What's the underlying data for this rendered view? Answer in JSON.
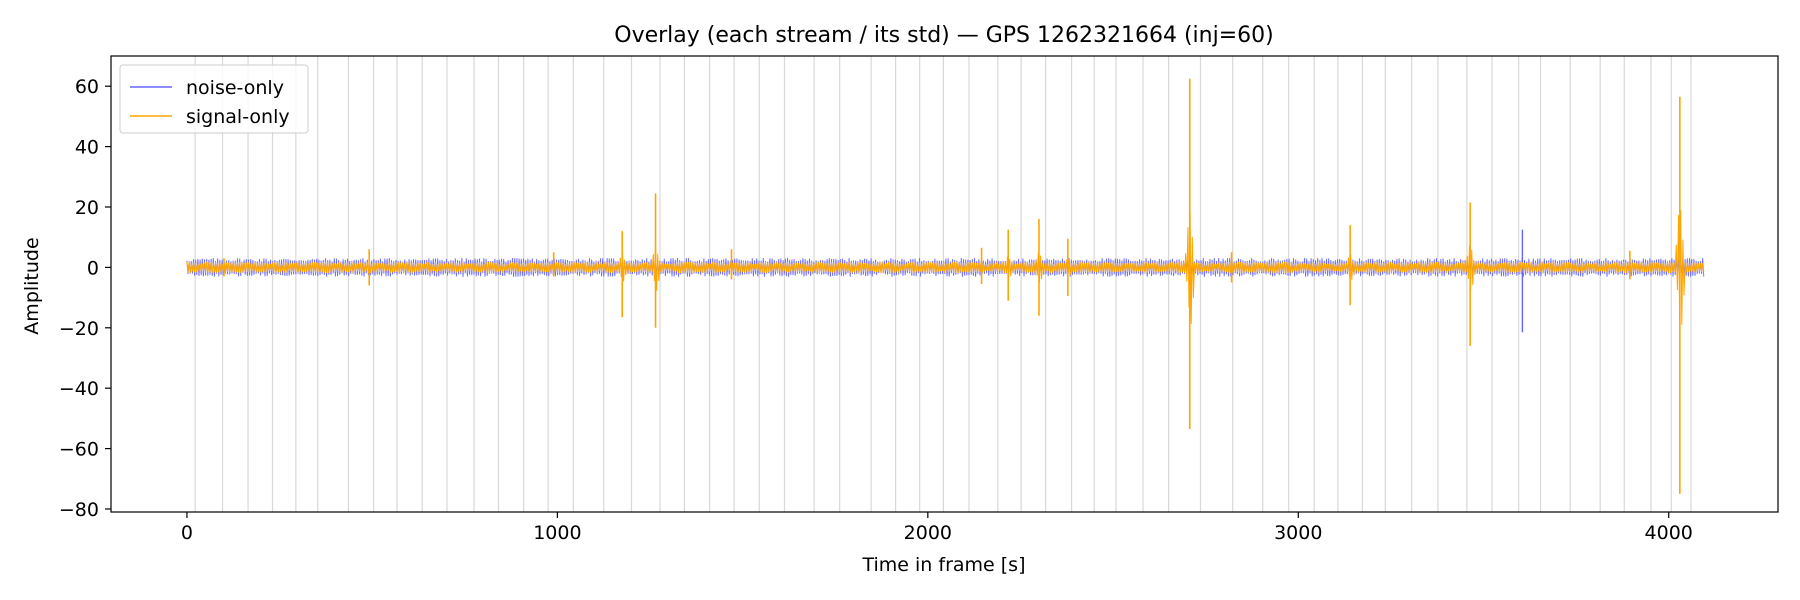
{
  "chart_data": {
    "type": "line",
    "title": "Overlay (each stream / its std) — GPS 1262321664 (inj=60)",
    "xlabel": "Time in frame [s]",
    "ylabel": "Amplitude",
    "xlim": [
      -205,
      4295
    ],
    "ylim": [
      -81,
      70
    ],
    "xticks": [
      0,
      1000,
      2000,
      3000,
      4000
    ],
    "yticks": [
      -80,
      -60,
      -40,
      -20,
      0,
      20,
      40,
      60
    ],
    "xtick_labels": [
      "0",
      "1000",
      "2000",
      "3000",
      "4000"
    ],
    "ytick_labels": [
      "−80",
      "−60",
      "−40",
      "−20",
      "0",
      "20",
      "40",
      "60"
    ],
    "grid": false,
    "legend": {
      "placement": "upper-left",
      "entries": [
        "noise-only",
        "signal-only"
      ]
    },
    "segment_boundaries": [
      22,
      96,
      165,
      231,
      294,
      353,
      436,
      504,
      567,
      635,
      702,
      775,
      841,
      909,
      975,
      1043,
      1125,
      1200,
      1277,
      1343,
      1411,
      1477,
      1545,
      1613,
      1693,
      1762,
      1847,
      1913,
      1978,
      2042,
      2111,
      2189,
      2252,
      2318,
      2388,
      2449,
      2508,
      2581,
      2650,
      2736,
      2823,
      2904,
      2974,
      3043,
      3107,
      3173,
      3235,
      3306,
      3377,
      3455,
      3523,
      3595,
      3654,
      3734,
      3815,
      3880,
      3952,
      4007,
      4060
    ],
    "x_range": [
      0,
      4096
    ],
    "series": [
      {
        "name": "noise-only",
        "color": "#6666ff",
        "baseline_amplitude": 2.5,
        "spikes": [
          {
            "x": 3605,
            "max": 12.5,
            "min": -21.5
          }
        ]
      },
      {
        "name": "signal-only",
        "color": "#ffa500",
        "baseline_amplitude": 1.5,
        "bursts": [
          {
            "x": 100,
            "max": 3,
            "min": -3
          },
          {
            "x": 492,
            "max": 6,
            "min": -6
          },
          {
            "x": 990,
            "max": 5,
            "min": -3
          },
          {
            "x": 1175,
            "max": 12,
            "min": -16.5
          },
          {
            "x": 1265,
            "max": 24.5,
            "min": -20
          },
          {
            "x": 1470,
            "max": 6,
            "min": -4
          },
          {
            "x": 2145,
            "max": 6.5,
            "min": -5.5
          },
          {
            "x": 2217,
            "max": 12.5,
            "min": -11
          },
          {
            "x": 2300,
            "max": 16,
            "min": -16
          },
          {
            "x": 2378,
            "max": 9.5,
            "min": -9.5
          },
          {
            "x": 2707,
            "max": 62.5,
            "min": -53.5
          },
          {
            "x": 2820,
            "max": 5,
            "min": -5
          },
          {
            "x": 3140,
            "max": 14,
            "min": -12.5
          },
          {
            "x": 3464,
            "max": 21.5,
            "min": -26
          },
          {
            "x": 3895,
            "max": 5.5,
            "min": -4
          },
          {
            "x": 4030,
            "max": 56.5,
            "min": -75
          }
        ]
      }
    ]
  }
}
